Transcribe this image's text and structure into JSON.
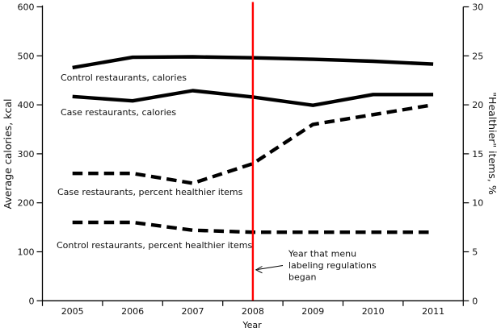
{
  "figure": {
    "background": "#ffffff",
    "line_color": "#000000",
    "event_line_color": "#ff0000"
  },
  "chart_data": {
    "type": "line",
    "x": [
      2005,
      2006,
      2007,
      2008,
      2009,
      2010,
      2011
    ],
    "series": [
      {
        "name": "Control restaurants, calories",
        "axis": "left",
        "style": "solid",
        "values": [
          476,
          497,
          498,
          496,
          493,
          489,
          483
        ]
      },
      {
        "name": "Case restaurants, calories",
        "axis": "left",
        "style": "solid",
        "values": [
          417,
          408,
          429,
          416,
          399,
          421,
          421
        ]
      },
      {
        "name": "Case restaurants, percent healthier items",
        "axis": "right",
        "style": "dashed",
        "values": [
          13,
          13,
          12,
          14,
          18,
          19,
          20
        ]
      },
      {
        "name": "Control restaurants, percent healthier items",
        "axis": "right",
        "style": "dashed",
        "values": [
          8,
          8,
          7.2,
          7,
          7,
          7,
          7
        ]
      }
    ],
    "left_axis": {
      "label": "Average calories, kcal",
      "min": 0,
      "max": 600,
      "ticks": [
        0,
        100,
        200,
        300,
        400,
        500,
        600
      ]
    },
    "right_axis": {
      "label": "\"Healthier\" items, %",
      "min": 0,
      "max": 30,
      "ticks": [
        0,
        5,
        10,
        15,
        20,
        25,
        30
      ]
    },
    "x_axis": {
      "label": "Year",
      "tick_labels": [
        "2005",
        "2006",
        "2007",
        "2008",
        "2009",
        "2010",
        "2011"
      ]
    },
    "grid": false,
    "legend": "in-plot text labels",
    "event_line": {
      "x": 2008,
      "color": "#ff0000",
      "annotation": [
        "Year that menu",
        "labeling regulations",
        "began"
      ]
    }
  }
}
